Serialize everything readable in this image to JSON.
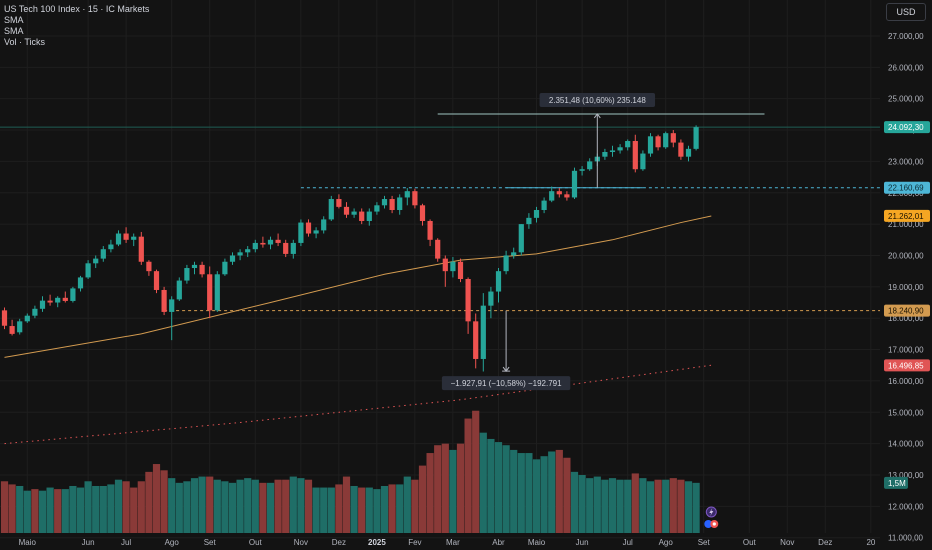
{
  "legend": {
    "title": "US Tech 100 Index · 15 · IC Markets",
    "line2": "SMA",
    "line3": "SMA",
    "line4": "Vol · Ticks"
  },
  "currency": "USD",
  "colors": {
    "bg": "#131313",
    "up": "#26a69a",
    "down": "#ef5350",
    "vol_up": "#1f6e67",
    "vol_down": "#8a3a38",
    "sma": "#d39b50",
    "sma2": "#e05555",
    "cyan": "#4db6d6",
    "orange": "#f5a623",
    "grid": "#1e1e1e"
  },
  "chart_data": {
    "type": "candlestick",
    "y_ticks": [
      11000,
      12000,
      13000,
      14000,
      15000,
      16000,
      17000,
      18000,
      19000,
      20000,
      21000,
      22000,
      23000,
      24000,
      25000,
      26000,
      27000
    ],
    "y_tick_labels": [
      "11.000,00",
      "12.000,00",
      "13.000,00",
      "14.000,00",
      "15.000,00",
      "16.000,00",
      "17.000,00",
      "18.000,00",
      "19.000,00",
      "20.000,00",
      "21.000,00",
      "22.000,00",
      "23.000,00",
      "24.000,00",
      "25.000,00",
      "26.000,00",
      "27.000,00"
    ],
    "ylim": [
      10800,
      27700
    ],
    "x_labels": [
      {
        "label": "Maio",
        "i": 3
      },
      {
        "label": "Jun",
        "i": 11
      },
      {
        "label": "Jul",
        "i": 16
      },
      {
        "label": "Ago",
        "i": 22
      },
      {
        "label": "Set",
        "i": 27
      },
      {
        "label": "Out",
        "i": 33
      },
      {
        "label": "Nov",
        "i": 39
      },
      {
        "label": "Dez",
        "i": 44
      },
      {
        "label": "2025",
        "i": 49,
        "year": true
      },
      {
        "label": "Fev",
        "i": 54
      },
      {
        "label": "Mar",
        "i": 59
      },
      {
        "label": "Abr",
        "i": 65
      },
      {
        "label": "Maio",
        "i": 70
      },
      {
        "label": "Jun",
        "i": 76
      },
      {
        "label": "Jul",
        "i": 82
      },
      {
        "label": "Ago",
        "i": 87
      },
      {
        "label": "Set",
        "i": 92
      },
      {
        "label": "Out",
        "i": 98
      },
      {
        "label": "Nov",
        "i": 103
      },
      {
        "label": "Dez",
        "i": 108
      },
      {
        "label": "20",
        "i": 114
      }
    ],
    "candles": [
      [
        18250,
        18340,
        17650,
        17760
      ],
      [
        17750,
        17950,
        17450,
        17500
      ],
      [
        17550,
        17980,
        17480,
        17900
      ],
      [
        17900,
        18150,
        17850,
        18080
      ],
      [
        18080,
        18400,
        18000,
        18300
      ],
      [
        18300,
        18700,
        18200,
        18560
      ],
      [
        18560,
        18750,
        18400,
        18500
      ],
      [
        18500,
        18700,
        18350,
        18650
      ],
      [
        18650,
        18850,
        18500,
        18550
      ],
      [
        18550,
        19000,
        18500,
        18950
      ],
      [
        18950,
        19350,
        18850,
        19300
      ],
      [
        19300,
        19850,
        19250,
        19750
      ],
      [
        19750,
        20000,
        19600,
        19900
      ],
      [
        19900,
        20300,
        19800,
        20200
      ],
      [
        20200,
        20500,
        20100,
        20350
      ],
      [
        20350,
        20800,
        20300,
        20700
      ],
      [
        20700,
        20900,
        20400,
        20500
      ],
      [
        20500,
        20700,
        20300,
        20600
      ],
      [
        20600,
        20750,
        19700,
        19800
      ],
      [
        19800,
        19850,
        19350,
        19500
      ],
      [
        19500,
        19550,
        18800,
        18900
      ],
      [
        18900,
        19000,
        18100,
        18200
      ],
      [
        18200,
        18700,
        17300,
        18600
      ],
      [
        18600,
        19300,
        18550,
        19200
      ],
      [
        19200,
        19700,
        19100,
        19600
      ],
      [
        19600,
        19800,
        19400,
        19700
      ],
      [
        19700,
        19800,
        19300,
        19400
      ],
      [
        19400,
        19650,
        18000,
        18250
      ],
      [
        18250,
        19500,
        18200,
        19400
      ],
      [
        19400,
        19900,
        19350,
        19800
      ],
      [
        19800,
        20100,
        19700,
        20000
      ],
      [
        20000,
        20200,
        19850,
        20100
      ],
      [
        20100,
        20300,
        19950,
        20200
      ],
      [
        20200,
        20500,
        20100,
        20400
      ],
      [
        20400,
        20600,
        20250,
        20350
      ],
      [
        20350,
        20600,
        20200,
        20500
      ],
      [
        20500,
        20700,
        20300,
        20400
      ],
      [
        20400,
        20500,
        19950,
        20050
      ],
      [
        20050,
        20500,
        19900,
        20400
      ],
      [
        20400,
        21150,
        20300,
        21050
      ],
      [
        21050,
        21150,
        20600,
        20700
      ],
      [
        20700,
        20900,
        20550,
        20800
      ],
      [
        20800,
        21250,
        20700,
        21150
      ],
      [
        21150,
        21900,
        21100,
        21800
      ],
      [
        21800,
        21950,
        21500,
        21550
      ],
      [
        21550,
        21700,
        21200,
        21300
      ],
      [
        21300,
        21500,
        21200,
        21400
      ],
      [
        21400,
        21500,
        21000,
        21100
      ],
      [
        21100,
        21500,
        20950,
        21400
      ],
      [
        21400,
        21700,
        21300,
        21600
      ],
      [
        21600,
        21900,
        21500,
        21800
      ],
      [
        21800,
        21900,
        21350,
        21450
      ],
      [
        21450,
        21950,
        21300,
        21850
      ],
      [
        21850,
        22150,
        21600,
        22050
      ],
      [
        22050,
        22130,
        21500,
        21600
      ],
      [
        21600,
        21650,
        20950,
        21100
      ],
      [
        21100,
        21150,
        20300,
        20500
      ],
      [
        20500,
        20550,
        19800,
        19900
      ],
      [
        19900,
        20000,
        19000,
        19500
      ],
      [
        19500,
        19950,
        19300,
        19800
      ],
      [
        19800,
        19900,
        19150,
        19250
      ],
      [
        19250,
        19300,
        17500,
        17900
      ],
      [
        17900,
        18150,
        16400,
        16700
      ],
      [
        16700,
        18800,
        16300,
        18400
      ],
      [
        18400,
        19000,
        18000,
        18850
      ],
      [
        18850,
        19600,
        18500,
        19500
      ],
      [
        19500,
        20150,
        19400,
        20000
      ],
      [
        20000,
        20250,
        19900,
        20100
      ],
      [
        20100,
        21000,
        20000,
        21000
      ],
      [
        21000,
        21350,
        20850,
        21200
      ],
      [
        21200,
        21550,
        21050,
        21450
      ],
      [
        21450,
        21850,
        21350,
        21750
      ],
      [
        21750,
        22200,
        21700,
        22050
      ],
      [
        22050,
        22150,
        21850,
        21950
      ],
      [
        21950,
        22050,
        21750,
        21850
      ],
      [
        21850,
        22800,
        21800,
        22700
      ],
      [
        22700,
        22850,
        22550,
        22750
      ],
      [
        22750,
        23100,
        22700,
        23000
      ],
      [
        23000,
        23250,
        22850,
        23150
      ],
      [
        23150,
        23400,
        23050,
        23300
      ],
      [
        23300,
        23500,
        23150,
        23350
      ],
      [
        23350,
        23550,
        23250,
        23450
      ],
      [
        23450,
        23700,
        23350,
        23650
      ],
      [
        23650,
        23850,
        22650,
        22750
      ],
      [
        22750,
        23350,
        22700,
        23250
      ],
      [
        23250,
        23900,
        23150,
        23800
      ],
      [
        23800,
        23850,
        23350,
        23450
      ],
      [
        23450,
        23950,
        23400,
        23900
      ],
      [
        23900,
        24000,
        23450,
        23600
      ],
      [
        23600,
        23700,
        23050,
        23150
      ],
      [
        23150,
        23500,
        23000,
        23400
      ],
      [
        23400,
        24150,
        23350,
        24092
      ]
    ],
    "volumes": [
      [
        12800,
        0
      ],
      [
        12700,
        0
      ],
      [
        12650,
        1
      ],
      [
        12500,
        1
      ],
      [
        12550,
        0
      ],
      [
        12500,
        1
      ],
      [
        12600,
        1
      ],
      [
        12550,
        0
      ],
      [
        12550,
        1
      ],
      [
        12650,
        1
      ],
      [
        12600,
        1
      ],
      [
        12800,
        1
      ],
      [
        12650,
        1
      ],
      [
        12650,
        1
      ],
      [
        12700,
        1
      ],
      [
        12850,
        1
      ],
      [
        12800,
        0
      ],
      [
        12600,
        0
      ],
      [
        12800,
        0
      ],
      [
        13100,
        0
      ],
      [
        13350,
        0
      ],
      [
        13150,
        0
      ],
      [
        12900,
        1
      ],
      [
        12750,
        1
      ],
      [
        12800,
        1
      ],
      [
        12900,
        1
      ],
      [
        12950,
        1
      ],
      [
        12950,
        0
      ],
      [
        12850,
        1
      ],
      [
        12800,
        1
      ],
      [
        12750,
        1
      ],
      [
        12850,
        1
      ],
      [
        12900,
        1
      ],
      [
        12850,
        1
      ],
      [
        12750,
        0
      ],
      [
        12750,
        1
      ],
      [
        12850,
        0
      ],
      [
        12850,
        0
      ],
      [
        12950,
        1
      ],
      [
        12900,
        1
      ],
      [
        12850,
        0
      ],
      [
        12600,
        1
      ],
      [
        12600,
        1
      ],
      [
        12600,
        1
      ],
      [
        12700,
        0
      ],
      [
        12950,
        0
      ],
      [
        12650,
        1
      ],
      [
        12600,
        0
      ],
      [
        12600,
        1
      ],
      [
        12550,
        1
      ],
      [
        12650,
        1
      ],
      [
        12700,
        0
      ],
      [
        12700,
        1
      ],
      [
        12950,
        1
      ],
      [
        12850,
        0
      ],
      [
        13300,
        0
      ],
      [
        13700,
        0
      ],
      [
        13950,
        0
      ],
      [
        14000,
        0
      ],
      [
        13800,
        1
      ],
      [
        14000,
        0
      ],
      [
        14800,
        0
      ],
      [
        15050,
        0
      ],
      [
        14350,
        1
      ],
      [
        14150,
        1
      ],
      [
        14050,
        1
      ],
      [
        13950,
        1
      ],
      [
        13800,
        1
      ],
      [
        13700,
        1
      ],
      [
        13700,
        1
      ],
      [
        13500,
        1
      ],
      [
        13600,
        1
      ],
      [
        13750,
        1
      ],
      [
        13800,
        0
      ],
      [
        13550,
        0
      ],
      [
        13100,
        1
      ],
      [
        13000,
        1
      ],
      [
        12900,
        1
      ],
      [
        12950,
        1
      ],
      [
        12850,
        1
      ],
      [
        12900,
        1
      ],
      [
        12850,
        1
      ],
      [
        12850,
        1
      ],
      [
        13050,
        0
      ],
      [
        12900,
        1
      ],
      [
        12800,
        1
      ],
      [
        12850,
        0
      ],
      [
        12850,
        1
      ],
      [
        12900,
        0
      ],
      [
        12850,
        0
      ],
      [
        12800,
        1
      ],
      [
        12750,
        1
      ]
    ],
    "sma": [
      [
        0,
        16750
      ],
      [
        18,
        17500
      ],
      [
        35,
        18500
      ],
      [
        50,
        19400
      ],
      [
        60,
        19850
      ],
      [
        70,
        20050
      ],
      [
        80,
        20500
      ],
      [
        89,
        21050
      ],
      [
        93,
        21260
      ]
    ],
    "sma2": [
      [
        0,
        14000
      ],
      [
        30,
        14650
      ],
      [
        60,
        15400
      ],
      [
        93,
        16500
      ]
    ],
    "horizontal_lines": [
      {
        "value": 24092.3,
        "color": "#26a69a",
        "label": "24.092,30",
        "style": "solid"
      },
      {
        "value": 22160.69,
        "color": "#4db6d6",
        "label": "22.160,69",
        "style": "dashed"
      },
      {
        "value": 21262.01,
        "color": "#f5a623",
        "label": "21.262,01",
        "style": "none"
      },
      {
        "value": 18240.9,
        "color": "#d39b50",
        "label": "18.240,90",
        "style": "dashed"
      },
      {
        "value": 16496.85,
        "color": "#e05555",
        "label": "16.496,85",
        "style": "none"
      }
    ],
    "volume_tag": {
      "label": "1,5M",
      "value": 12750
    },
    "measure_up": {
      "label": "2.351,48 (10,60%) 235.148",
      "from": 22160.69,
      "to": 24512,
      "i": 78
    },
    "measure_down": {
      "label": "−1.927,91 (−10,58%) −192.791",
      "from": 18240.9,
      "to": 16313,
      "i": 66
    }
  }
}
